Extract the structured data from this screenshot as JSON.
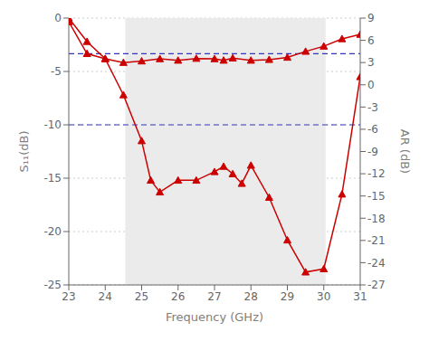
{
  "chart_data": {
    "type": "line",
    "xlabel": "Frequency (GHz)",
    "ylabel": "S₁₁(dB)",
    "y2label": "AR (dB)",
    "xlim": [
      23,
      31
    ],
    "xticks": [
      23,
      24,
      25,
      26,
      27,
      28,
      29,
      30,
      31
    ],
    "ylim": [
      -25,
      0
    ],
    "yticks": [
      0,
      -5,
      -10,
      -15,
      -20,
      -25
    ],
    "y2lim": [
      -27,
      9
    ],
    "y2ticks": [
      9,
      6,
      3,
      0,
      -3,
      -6,
      -9,
      -12,
      -15,
      -18,
      -21,
      -24,
      -27
    ],
    "grid": "y",
    "shaded_region": {
      "x": [
        24.55,
        30.05
      ],
      "color": "#ebebeb"
    },
    "hlines": {
      "values": [
        -3.333,
        -10.0
      ],
      "color": "#3333bb",
      "line_style": "dashed"
    },
    "series": [
      {
        "x": [
          23.0,
          23.5,
          24.0,
          24.5,
          25.0,
          25.25,
          25.5,
          26.0,
          26.5,
          27.0,
          27.25,
          27.5,
          27.75,
          28.0,
          28.5,
          29.0,
          29.5,
          30.0,
          30.5,
          31.0
        ],
        "values": [
          0.0,
          -2.2,
          -3.8,
          -7.2,
          -11.5,
          -15.2,
          -16.3,
          -15.2,
          -15.2,
          -14.4,
          -13.9,
          -14.6,
          -15.5,
          -13.8,
          -16.8,
          -20.8,
          -23.8,
          -23.5,
          -16.5,
          -5.5
        ],
        "color": "#cc0000",
        "marker": "triangle"
      },
      {
        "x": [
          23.0,
          23.5,
          24.0,
          24.5,
          25.0,
          25.5,
          26.0,
          26.5,
          27.0,
          27.25,
          27.5,
          28.0,
          28.5,
          29.0,
          29.5,
          30.0,
          30.5,
          31.0
        ],
        "values": [
          8.5,
          4.2,
          3.5,
          3.0,
          3.2,
          3.5,
          3.3,
          3.55,
          3.5,
          3.3,
          3.6,
          3.3,
          3.4,
          3.7,
          4.5,
          5.2,
          6.2,
          6.8
        ],
        "color": "#cc0000",
        "marker": "triangle",
        "axis": "y2"
      }
    ]
  }
}
